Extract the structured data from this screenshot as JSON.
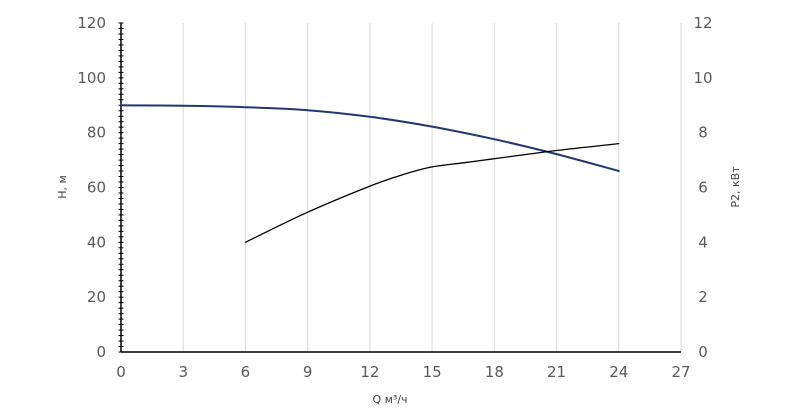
{
  "chart_data": {
    "type": "line",
    "xlabel": "Q м³/ч",
    "ylabel_left": "H, м",
    "ylabel_right": "P2, кВт",
    "xlim": [
      0,
      27
    ],
    "ylim_left": [
      0,
      120
    ],
    "ylim_right": [
      0,
      12
    ],
    "x_ticks": [
      "0",
      "3",
      "6",
      "9",
      "12",
      "15",
      "18",
      "21",
      "24",
      "27"
    ],
    "y_left_ticks": [
      "0",
      "20",
      "40",
      "60",
      "80",
      "100",
      "120"
    ],
    "y_right_ticks": [
      "0",
      "2",
      "4",
      "6",
      "8",
      "10",
      "12"
    ],
    "grid": "vertical",
    "series": [
      {
        "axis": "left",
        "color": "#1f3872",
        "x": [
          0,
          3,
          6,
          9,
          12,
          15,
          18,
          21,
          24
        ],
        "y": [
          90,
          89.8,
          89.3,
          88.2,
          85.8,
          82.2,
          77.6,
          72.2,
          66
        ]
      },
      {
        "axis": "right",
        "color": "#000000",
        "x": [
          6,
          9,
          12,
          13.5,
          15,
          16.5,
          18,
          21,
          24
        ],
        "y": [
          4.0,
          5.1,
          6.05,
          6.45,
          6.75,
          6.9,
          7.05,
          7.35,
          7.6
        ]
      }
    ]
  }
}
